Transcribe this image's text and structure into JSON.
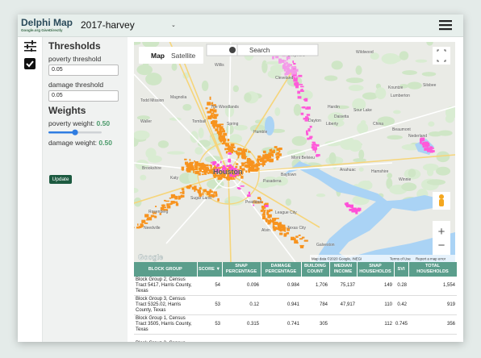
{
  "header": {
    "title": "Delphi Map",
    "logo_subtitle": "Google.org GiveDirectly",
    "dataset": "2017-harvey"
  },
  "sidebar": {
    "thresholds_heading": "Thresholds",
    "poverty_threshold_label": "poverty threshold",
    "poverty_threshold_value": "0.05",
    "damage_threshold_label": "damage threshold",
    "damage_threshold_value": "0.05",
    "weights_heading": "Weights",
    "poverty_weight_label": "poverty weight:",
    "poverty_weight_value": "0.50",
    "damage_weight_label": "damage weight:",
    "damage_weight_value": "0.50",
    "update_button": "Update"
  },
  "map": {
    "map_tab": "Map",
    "satellite_tab": "Satellite",
    "search_placeholder": "Search",
    "zoom_in": "+",
    "zoom_out": "−",
    "logo": "Google",
    "attribution": "Map data ©2020 Google, INEGI",
    "terms": "Terms of Use",
    "report": "Report a map error",
    "places": [
      "Willis",
      "Shepherd",
      "Wildwood",
      "Cleveland",
      "Kountze",
      "Silsbee",
      "Magnolia",
      "The Woodlands",
      "Lumberton",
      "Todd Mission",
      "Tomball",
      "Spring",
      "Humble",
      "Hardin",
      "Sour Lake",
      "Dayton",
      "Liberty",
      "Daisetta",
      "China",
      "Beaumont",
      "Waller",
      "Nederland",
      "Mont Belvieu",
      "Baytown",
      "Hamshire",
      "Brookshire",
      "Katy",
      "Houston",
      "Pasadena",
      "Anahuac",
      "Winnie",
      "Sugar Land",
      "Pearland",
      "Rosenberg",
      "League City",
      "Texas City",
      "Alvin",
      "Needville",
      "Galveston"
    ]
  },
  "table": {
    "columns": [
      "BLOCK GROUP",
      "SCORE ▼",
      "SNAP PERCENTAGE",
      "DAMAGE PERCENTAGE",
      "BUILDING COUNT",
      "MEDIAN INCOME",
      "SNAP HOUSEHOLDS",
      "SVI",
      "TOTAL HOUSEHOLDS"
    ],
    "rows": [
      [
        "Block Group 2, Census Tract 5417, Harris County, Texas",
        "54",
        "0.096",
        "0.984",
        "1,706",
        "75,137",
        "149",
        "0.28",
        "1,554"
      ],
      [
        "Block Group 3, Census Tract 5325.02, Harris County, Texas",
        "53",
        "0.12",
        "0.941",
        "784",
        "47,917",
        "110",
        "0.42",
        "919"
      ],
      [
        "Block Group 1, Census Tract 3505, Harris County, Texas",
        "53",
        "0.315",
        "0.741",
        "305",
        null,
        "112",
        "0.745",
        "356"
      ],
      [
        "Block Group 2, Census",
        null,
        null,
        null,
        null,
        null,
        null,
        null,
        null
      ]
    ]
  }
}
